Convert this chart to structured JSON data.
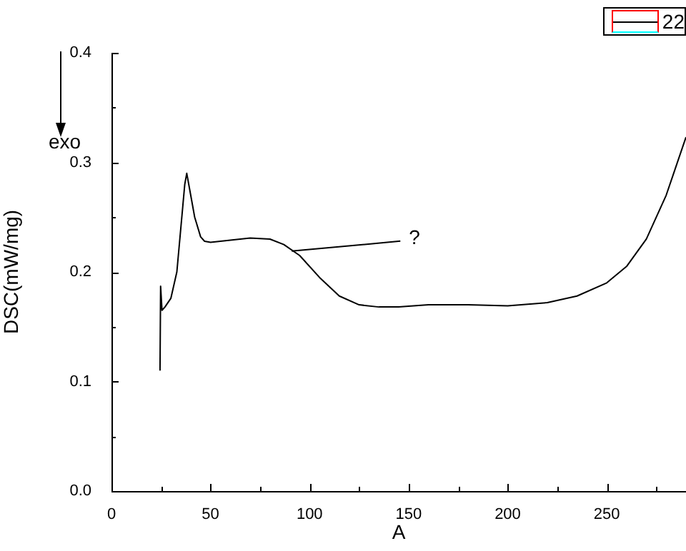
{
  "chart_data": {
    "type": "line",
    "xlabel": "A",
    "ylabel": "DSC(mW/mg)",
    "xlim": [
      0,
      290
    ],
    "xticks": [
      0,
      {
        "value": 25,
        "label": null
      },
      50,
      {
        "value": 75,
        "label": null
      },
      100,
      {
        "value": 125,
        "label": null
      },
      150,
      {
        "value": 175,
        "label": null
      },
      200,
      {
        "value": 225,
        "label": null
      },
      250,
      {
        "value": 275,
        "label": null
      }
    ],
    "ylim": [
      0,
      0.4
    ],
    "yticks": [
      {
        "value": 0,
        "label": "0.0"
      },
      {
        "value": 0.05,
        "label": null
      },
      0.1,
      {
        "value": 0.15,
        "label": null
      },
      0.2,
      {
        "value": 0.25,
        "label": null
      },
      0.3,
      {
        "value": 0.35,
        "label": null
      },
      0.4
    ],
    "legend": "top right",
    "marker": "none",
    "line_style": "solid",
    "annotations": [
      "exo",
      {
        "text": "?",
        "x": 91,
        "y": 0.219
      }
    ],
    "series": [
      {
        "name": "22",
        "color": "#000000",
        "x": [
          24.5,
          24.8,
          25.5,
          27,
          30,
          33,
          35,
          37,
          38,
          40,
          42,
          45,
          47,
          50,
          60,
          70,
          80,
          87,
          95,
          105,
          115,
          125,
          135,
          145,
          160,
          180,
          200,
          220,
          235,
          250,
          260,
          270,
          280,
          290
        ],
        "values": [
          0.11,
          0.187,
          0.165,
          0.168,
          0.176,
          0.2,
          0.24,
          0.28,
          0.29,
          0.27,
          0.25,
          0.232,
          0.228,
          0.227,
          0.229,
          0.231,
          0.23,
          0.225,
          0.215,
          0.195,
          0.178,
          0.17,
          0.168,
          0.168,
          0.17,
          0.17,
          0.169,
          0.172,
          0.178,
          0.19,
          0.205,
          0.23,
          0.27,
          0.323
        ]
      }
    ]
  }
}
